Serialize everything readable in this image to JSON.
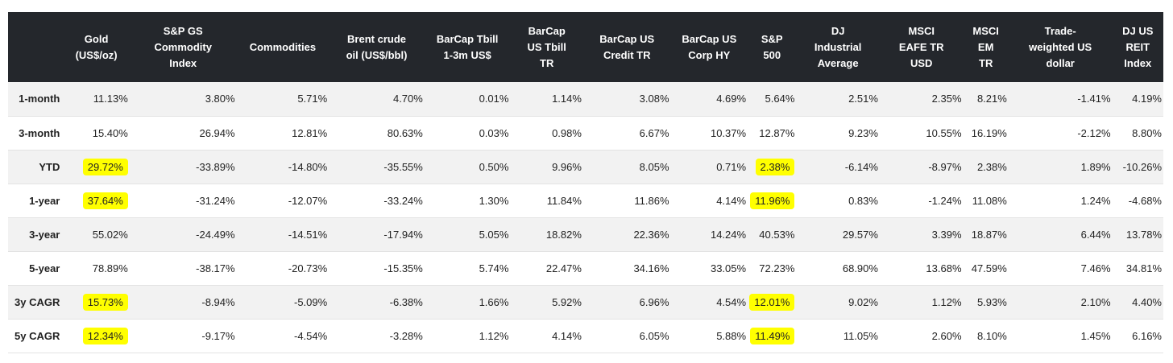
{
  "table": {
    "headers": [
      "",
      "Gold\n(US$/oz)",
      "S&P GS\nCommodity\nIndex",
      "Commodities",
      "Brent crude\noil (US$/bbl)",
      "BarCap Tbill\n1-3m US$",
      "BarCap\nUS Tbill\nTR",
      "BarCap US\nCredit TR",
      "BarCap US\nCorp HY",
      "S&P\n500",
      "DJ\nIndustrial\nAverage",
      "MSCI\nEAFE TR\nUSD",
      "MSCI\nEM\nTR",
      "Trade-\nweighted US\ndollar",
      "DJ US\nREIT\nIndex"
    ],
    "rows": [
      {
        "label": "1-month",
        "cells": [
          "11.13%",
          "3.80%",
          "5.71%",
          "4.70%",
          "0.01%",
          "1.14%",
          "3.08%",
          "4.69%",
          "5.64%",
          "2.51%",
          "2.35%",
          "8.21%",
          "-1.41%",
          "4.19%"
        ],
        "highlight": []
      },
      {
        "label": "3-month",
        "cells": [
          "15.40%",
          "26.94%",
          "12.81%",
          "80.63%",
          "0.03%",
          "0.98%",
          "6.67%",
          "10.37%",
          "12.87%",
          "9.23%",
          "10.55%",
          "16.19%",
          "-2.12%",
          "8.80%"
        ],
        "highlight": []
      },
      {
        "label": "YTD",
        "cells": [
          "29.72%",
          "-33.89%",
          "-14.80%",
          "-35.55%",
          "0.50%",
          "9.96%",
          "8.05%",
          "0.71%",
          "2.38%",
          "-6.14%",
          "-8.97%",
          "2.38%",
          "1.89%",
          "-10.26%"
        ],
        "highlight": [
          0,
          8
        ]
      },
      {
        "label": "1-year",
        "cells": [
          "37.64%",
          "-31.24%",
          "-12.07%",
          "-33.24%",
          "1.30%",
          "11.84%",
          "11.86%",
          "4.14%",
          "11.96%",
          "0.83%",
          "-1.24%",
          "11.08%",
          "1.24%",
          "-4.68%"
        ],
        "highlight": [
          0,
          8
        ]
      },
      {
        "label": "3-year",
        "cells": [
          "55.02%",
          "-24.49%",
          "-14.51%",
          "-17.94%",
          "5.05%",
          "18.82%",
          "22.36%",
          "14.24%",
          "40.53%",
          "29.57%",
          "3.39%",
          "18.87%",
          "6.44%",
          "13.78%"
        ],
        "highlight": []
      },
      {
        "label": "5-year",
        "cells": [
          "78.89%",
          "-38.17%",
          "-20.73%",
          "-15.35%",
          "5.74%",
          "22.47%",
          "34.16%",
          "33.05%",
          "72.23%",
          "68.90%",
          "13.68%",
          "47.59%",
          "7.46%",
          "34.81%"
        ],
        "highlight": []
      },
      {
        "label": "3y CAGR",
        "cells": [
          "15.73%",
          "-8.94%",
          "-5.09%",
          "-6.38%",
          "1.66%",
          "5.92%",
          "6.96%",
          "4.54%",
          "12.01%",
          "9.02%",
          "1.12%",
          "5.93%",
          "2.10%",
          "4.40%"
        ],
        "highlight": [
          0,
          8
        ]
      },
      {
        "label": "5y CAGR",
        "cells": [
          "12.34%",
          "-9.17%",
          "-4.54%",
          "-3.28%",
          "1.12%",
          "4.14%",
          "6.05%",
          "5.88%",
          "11.49%",
          "11.05%",
          "2.60%",
          "8.10%",
          "1.45%",
          "6.16%"
        ],
        "highlight": [
          0,
          8
        ]
      }
    ]
  },
  "colors": {
    "header_bg": "#24272c",
    "highlight": "#ffff00",
    "row_alt": "#f2f2f2"
  }
}
